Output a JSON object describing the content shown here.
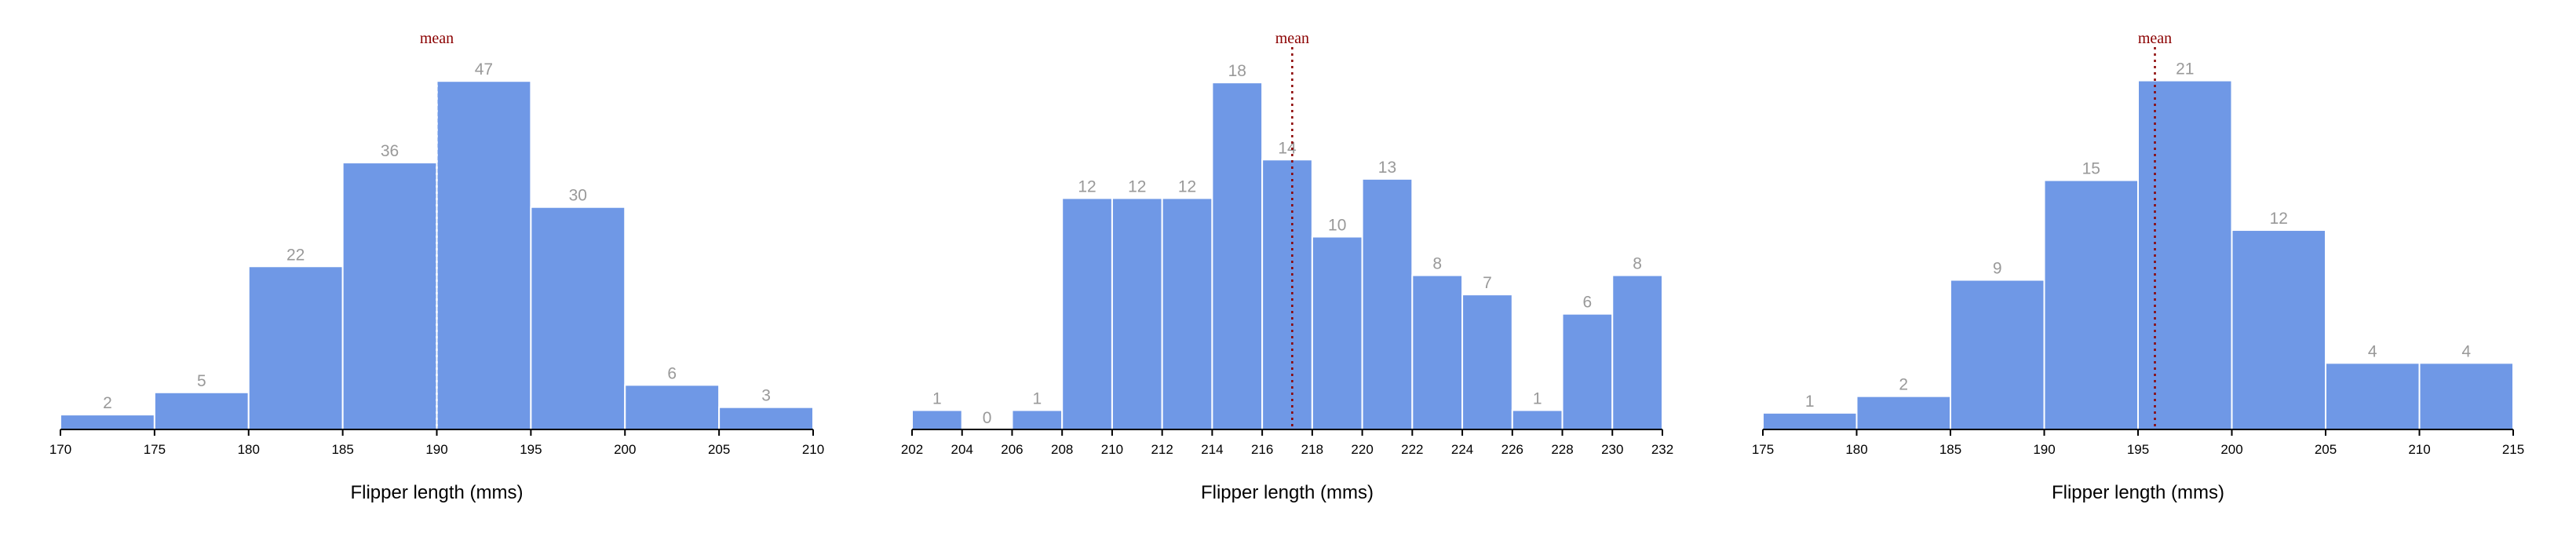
{
  "chart_data": [
    {
      "type": "bar",
      "bin_edges": [
        170,
        175,
        180,
        185,
        190,
        195,
        200,
        205,
        210
      ],
      "values": [
        2,
        5,
        22,
        36,
        47,
        30,
        6,
        3
      ],
      "x_ticks": [
        "170",
        "175",
        "180",
        "185",
        "190",
        "195",
        "200",
        "205",
        "210"
      ],
      "xlabel": "Flipper length (mms)",
      "xlim": [
        170,
        210
      ],
      "ylim": [
        0,
        52
      ],
      "mean": 190,
      "mean_label": "mean",
      "mean_color": "#ffffff",
      "grid": false
    },
    {
      "type": "bar",
      "bin_edges": [
        202,
        204,
        206,
        208,
        210,
        212,
        214,
        216,
        218,
        220,
        222,
        224,
        226,
        228,
        230,
        232
      ],
      "values": [
        1,
        0,
        1,
        12,
        12,
        12,
        18,
        14,
        10,
        13,
        8,
        7,
        1,
        6,
        8
      ],
      "x_ticks": [
        "202",
        "204",
        "206",
        "208",
        "210",
        "212",
        "214",
        "216",
        "218",
        "220",
        "222",
        "224",
        "226",
        "228",
        "230",
        "232"
      ],
      "xlabel": "Flipper length (mms)",
      "xlim": [
        202,
        232
      ],
      "ylim": [
        0,
        20
      ],
      "mean": 217.2,
      "mean_label": "mean",
      "mean_color": "#8b0000",
      "grid": false
    },
    {
      "type": "bar",
      "bin_edges": [
        175,
        180,
        185,
        190,
        195,
        200,
        205,
        210,
        215
      ],
      "values": [
        1,
        2,
        9,
        15,
        21,
        12,
        4,
        4
      ],
      "x_ticks": [
        "175",
        "180",
        "185",
        "190",
        "195",
        "200",
        "205",
        "210",
        "215"
      ],
      "xlabel": "Flipper length (mms)",
      "xlim": [
        175,
        215
      ],
      "ylim": [
        0,
        23.2
      ],
      "mean": 195.9,
      "mean_label": "mean",
      "mean_color": "#8b0000",
      "grid": false
    }
  ],
  "colors": {
    "bar": "#6f98e6",
    "count_label": "#999999",
    "mean": "#8b0000"
  }
}
